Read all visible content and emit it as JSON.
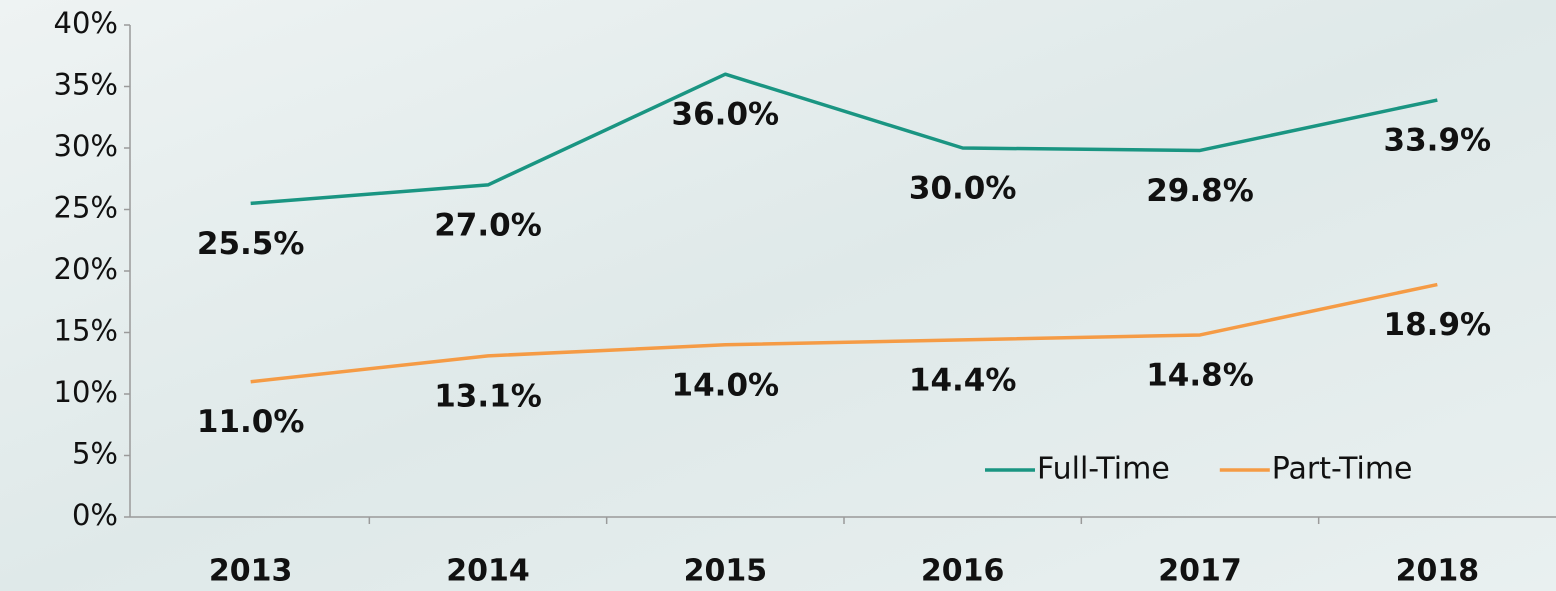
{
  "chart_data": {
    "type": "line",
    "categories": [
      "2013",
      "2014",
      "2015",
      "2016",
      "2017",
      "2018"
    ],
    "series": [
      {
        "name": "Full-Time",
        "color": "#1a9582",
        "values": [
          25.5,
          27.0,
          36.0,
          30.0,
          29.8,
          33.9
        ],
        "value_labels": [
          "25.5%",
          "27.0%",
          "36.0%",
          "30.0%",
          "29.8%",
          "33.9%"
        ]
      },
      {
        "name": "Part-Time",
        "color": "#f59b45",
        "values": [
          11.0,
          13.1,
          14.0,
          14.4,
          14.8,
          18.9
        ],
        "value_labels": [
          "11.0%",
          "13.1%",
          "14.0%",
          "14.4%",
          "14.8%",
          "18.9%"
        ]
      }
    ],
    "ylim": [
      0,
      40
    ],
    "yticks": [
      {
        "value": 0,
        "label": "0%"
      },
      {
        "value": 5,
        "label": "5%"
      },
      {
        "value": 10,
        "label": "10%"
      },
      {
        "value": 15,
        "label": "15%"
      },
      {
        "value": 20,
        "label": "20%"
      },
      {
        "value": 25,
        "label": "25%"
      },
      {
        "value": 30,
        "label": "30%"
      },
      {
        "value": 35,
        "label": "35%"
      },
      {
        "value": 40,
        "label": "40%"
      }
    ],
    "grid": false,
    "legend": "lower right"
  }
}
